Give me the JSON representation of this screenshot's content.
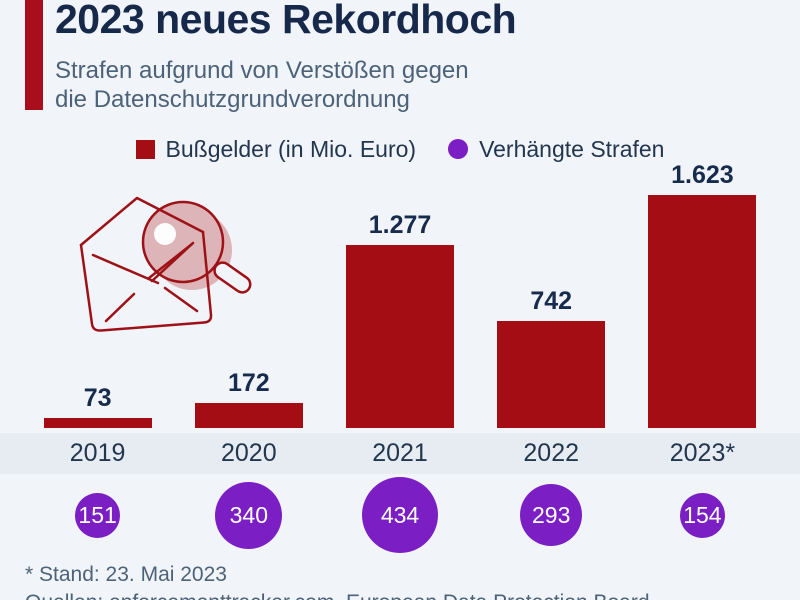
{
  "header": {
    "title": "2023 neues Rekordhoch",
    "subtitle_line1": "Strafen aufgrund von Verstößen gegen",
    "subtitle_line2": "die Datenschutzgrundverordnung"
  },
  "legend": {
    "fines_label": "Bußgelder (in Mio. Euro)",
    "penalties_label": "Verhängte Strafen"
  },
  "chart_data": {
    "type": "bar",
    "categories": [
      "2019",
      "2020",
      "2021",
      "2022",
      "2023*"
    ],
    "series": [
      {
        "name": "Bußgelder (in Mio. Euro)",
        "representation": "bar",
        "values": [
          73,
          172,
          1277,
          742,
          1623
        ],
        "labels": [
          "73",
          "172",
          "1.277",
          "742",
          "1.623"
        ],
        "color": "#a30d13"
      },
      {
        "name": "Verhängte Strafen",
        "representation": "proportional-circle",
        "values": [
          151,
          340,
          434,
          293,
          154
        ],
        "labels": [
          "151",
          "340",
          "434",
          "293",
          "154"
        ],
        "color": "#7b1fc4"
      }
    ],
    "title": "2023 neues Rekordhoch",
    "xlabel": "",
    "ylabel": "",
    "ylim": [
      0,
      1623
    ],
    "grid": false,
    "value_axis_visible": false,
    "legend_position": "top"
  },
  "footer": {
    "note": "* Stand: 23. Mai 2023",
    "sources": "Quellen: enforcementtracker.com, European Data Protection Board"
  },
  "icons": {
    "envelope_magnifier": "envelope-with-magnifying-glass-icon"
  },
  "colors": {
    "background": "#f1f4f9",
    "band": "#e7ecf3",
    "bar_red": "#a30d13",
    "accent_red": "#a90e1c",
    "purple": "#7b1fc4",
    "navy": "#16294a",
    "subtitle_gray": "#4c6278"
  }
}
